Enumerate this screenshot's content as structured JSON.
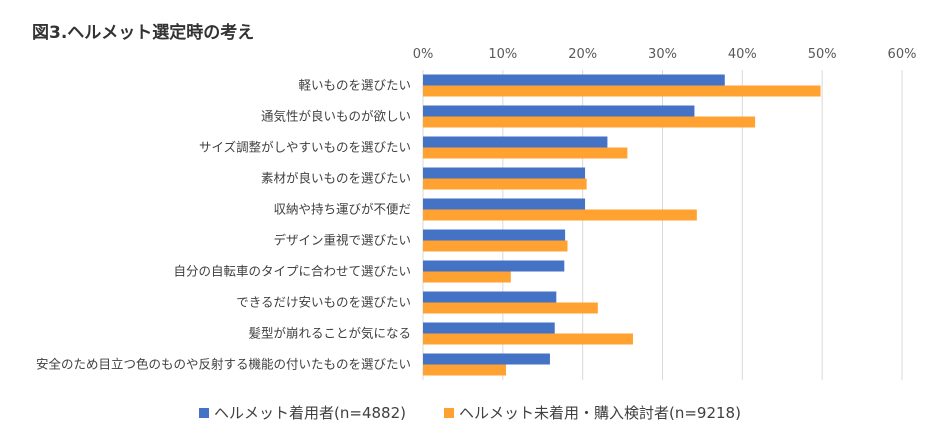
{
  "figure": {
    "title": "図3.ヘルメット選定時の考え"
  },
  "colors": {
    "series1": "#4472C4",
    "series2": "#FFA232",
    "grid": "#D9D9D9"
  },
  "chart_data": {
    "type": "bar",
    "orientation": "horizontal",
    "title": "図3.ヘルメット選定時の考え",
    "xlim": [
      0,
      60
    ],
    "x_ticks": [
      "0%",
      "10%",
      "20%",
      "30%",
      "40%",
      "50%",
      "60%"
    ],
    "x_tick_values": [
      0,
      10,
      20,
      30,
      40,
      50,
      60
    ],
    "x_axis_position": "top",
    "grid": true,
    "legend_position": "bottom",
    "categories": [
      "軽いものを選びたい",
      "通気性が良いものが欲しい",
      "サイズ調整がしやすいものを選びたい",
      "素材が良いものを選びたい",
      "収納や持ち運びが不便だ",
      "デザイン重視で選びたい",
      "自分の自転車のタイプに合わせて選びたい",
      "できるだけ安いものを選びたい",
      "髪型が崩れることが気になる",
      "安全のため目立つ色のものや反射する機能の付いたものを選びたい"
    ],
    "series": [
      {
        "name": "ヘルメット着用者(n=4882)",
        "values": [
          37.8,
          34.0,
          23.1,
          20.3,
          20.3,
          17.8,
          17.7,
          16.7,
          16.5,
          15.9
        ]
      },
      {
        "name": "ヘルメット未着用・購入検討者(n=9218)",
        "values": [
          49.8,
          41.6,
          25.6,
          20.5,
          34.3,
          18.1,
          11.0,
          21.9,
          26.3,
          10.4
        ]
      }
    ]
  }
}
